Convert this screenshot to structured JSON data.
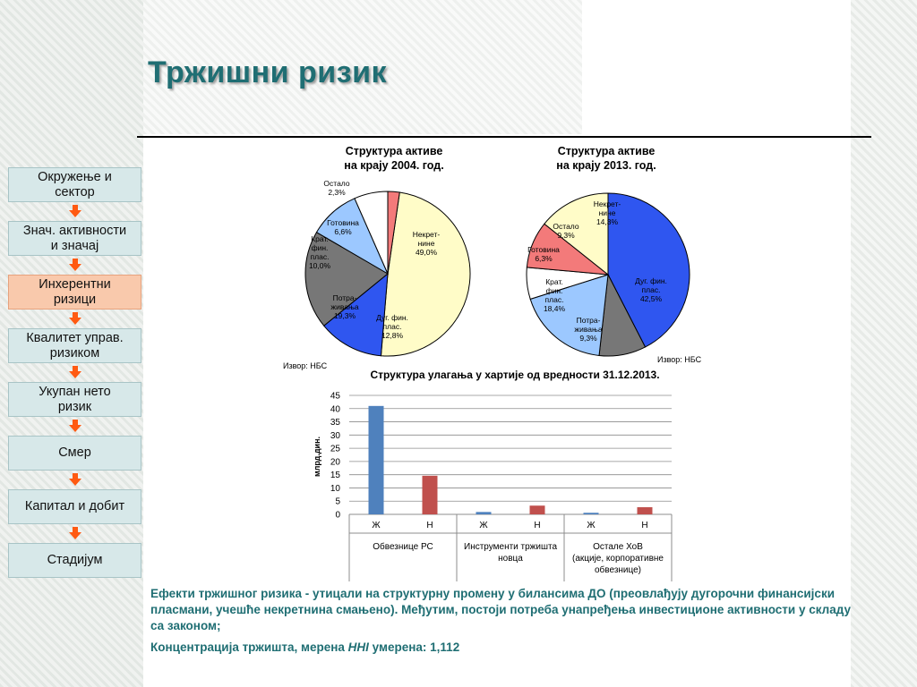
{
  "title": "Тржишни ризик",
  "nav": {
    "items": [
      {
        "label_lines": [
          "Окружење и",
          "сектор"
        ],
        "active": false
      },
      {
        "label_lines": [
          "Знач. активности",
          "и значај"
        ],
        "active": false
      },
      {
        "label_lines": [
          "Инхерентни",
          "ризици"
        ],
        "active": true
      },
      {
        "label_lines": [
          "Квалитет управ.",
          "ризиком"
        ],
        "active": false
      },
      {
        "label_lines": [
          "Укупан нето",
          "ризик"
        ],
        "active": false
      },
      {
        "label_lines": [
          "Смер"
        ],
        "active": false
      },
      {
        "label_lines": [
          "Капитал и добит"
        ],
        "active": false
      },
      {
        "label_lines": [
          "Стадијум"
        ],
        "active": false
      }
    ],
    "colors": {
      "item": "#d7e8e9",
      "active": "#f9c9ac",
      "arrow": "#ff5a12"
    }
  },
  "chart_data": [
    {
      "type": "pie",
      "title": "Структура активе\nна крају 2004. год.",
      "source": "Извор: НБС",
      "slices": [
        {
          "label": "Некрет-\nнине",
          "value": 49.0,
          "display": "49,0%",
          "color": "#fffcc8"
        },
        {
          "label": "Дуг. фин.\nплас.",
          "value": 12.8,
          "display": "12,8%",
          "color": "#2f56f0"
        },
        {
          "label": "Потра-\nживања",
          "value": 19.3,
          "display": "19,3%",
          "color": "#777777"
        },
        {
          "label": "Крат.\nфин.\nплас.",
          "value": 10.0,
          "display": "10,0%",
          "color": "#9cc8ff"
        },
        {
          "label": "Готовина",
          "value": 6.6,
          "display": "6,6%",
          "color": "#ffffff"
        },
        {
          "label": "Остало",
          "value": 2.3,
          "display": "2,3%",
          "color": "#f37a7a"
        }
      ]
    },
    {
      "type": "pie",
      "title": "Структура активе\nна крају 2013. год.",
      "source": "Извор: НБС",
      "slices": [
        {
          "label": "Дуг. фин.\nплас.",
          "value": 42.5,
          "display": "42,5%",
          "color": "#2f56f0"
        },
        {
          "label": "Потра-\nживања",
          "value": 9.3,
          "display": "9,3%",
          "color": "#777777"
        },
        {
          "label": "Крат.\nфин.\nплас.",
          "value": 18.4,
          "display": "18,4%",
          "color": "#9cc8ff"
        },
        {
          "label": "Готовина",
          "value": 6.3,
          "display": "6,3%",
          "color": "#ffffff"
        },
        {
          "label": "Остало",
          "value": 9.3,
          "display": "9,3%",
          "color": "#f37a7a"
        },
        {
          "label": "Некрет-\nнине",
          "value": 14.3,
          "display": "14,3%",
          "color": "#fffcc8"
        }
      ]
    },
    {
      "type": "bar",
      "title": "Структура улагања у хартије од вредности 31.12.2013.",
      "ylabel": "млрд.дин.",
      "ylim": [
        0,
        45
      ],
      "yticks": [
        0,
        5,
        10,
        15,
        20,
        25,
        30,
        35,
        40,
        45
      ],
      "grid": true,
      "groups": [
        {
          "label_lines": [
            "Обвезнице РС"
          ],
          "bars": [
            {
              "label": "Ж",
              "value": 41.0,
              "color": "#4f81bd"
            },
            {
              "label": "Н",
              "value": 14.6,
              "color": "#c0504d"
            }
          ]
        },
        {
          "label_lines": [
            "Инструменти тржишта",
            "новца"
          ],
          "bars": [
            {
              "label": "Ж",
              "value": 0.9,
              "color": "#4f81bd"
            },
            {
              "label": "Н",
              "value": 3.3,
              "color": "#c0504d"
            }
          ]
        },
        {
          "label_lines": [
            "Остале ХоВ",
            "(акције, корпоративне",
            "обвезнице)"
          ],
          "bars": [
            {
              "label": "Ж",
              "value": 0.6,
              "color": "#4f81bd"
            },
            {
              "label": "Н",
              "value": 2.7,
              "color": "#c0504d"
            }
          ]
        }
      ]
    }
  ],
  "notes": {
    "p1": "Ефекти тржишног ризика - утицали на структурну промену у билансима ДО (преовлађују дугорочни финансијски пласмани, учешће некретнина смањено). Међутим, постоји потреба унапређења инвестиционе активности у складу са законом;",
    "p2_before": "Концентрација тржишта, мерена ",
    "p2_em": "HHI",
    "p2_after": "  умерена: 1,112"
  }
}
